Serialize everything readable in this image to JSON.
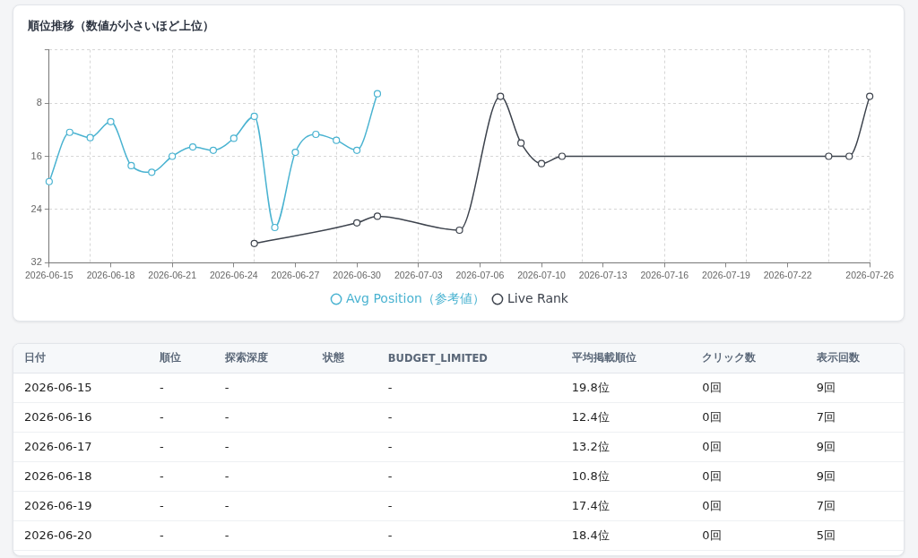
{
  "chart_data": [
    {
      "type": "line",
      "title": "順位推移（数値が小さいほど上位）",
      "categories": [
        "2026-06-15",
        null,
        null,
        "2026-06-18",
        null,
        null,
        "2026-06-21",
        null,
        null,
        "2026-06-24",
        null,
        null,
        "2026-06-27",
        null,
        null,
        "2026-06-30",
        null,
        null,
        "2026-07-03",
        null,
        null,
        "2026-07-06",
        null,
        null,
        "2026-07-10",
        null,
        null,
        "2026-07-13",
        null,
        null,
        "2026-07-16",
        null,
        null,
        "2026-07-19",
        null,
        null,
        "2026-07-22",
        null,
        null,
        null,
        "2026-07-26"
      ],
      "series": [
        {
          "name": "Avg Position（参考値）",
          "color": "#4ab3d1",
          "values": [
            19.8,
            12.4,
            13.2,
            10.8,
            17.4,
            18.4,
            16.0,
            14.6,
            15.1,
            13.3,
            10.0,
            26.7,
            15.4,
            12.7,
            13.6,
            15.1,
            6.6,
            null,
            null,
            null,
            null,
            null,
            null,
            null,
            null,
            null,
            null,
            null,
            null,
            null,
            null,
            null,
            null,
            null,
            null,
            null,
            null,
            null,
            null,
            null,
            null
          ]
        },
        {
          "name": "Live Rank",
          "color": "#3d434d",
          "values": [
            null,
            null,
            null,
            null,
            null,
            null,
            null,
            null,
            null,
            null,
            29.1,
            null,
            null,
            null,
            null,
            26.0,
            25.0,
            null,
            null,
            null,
            27.1,
            null,
            7.0,
            14.0,
            17.1,
            16.0,
            null,
            null,
            null,
            null,
            null,
            null,
            null,
            null,
            null,
            null,
            null,
            null,
            16.0,
            16.0,
            7.0
          ]
        }
      ],
      "ylim": [
        32,
        0
      ],
      "yticks": [
        {
          "value": 0,
          "label": null
        },
        8,
        16,
        24,
        32
      ],
      "grid": true,
      "legend": "bottom",
      "marker": "circle",
      "line_style": "solid"
    },
    {
      "type": "other",
      "categories": [
        "日付",
        "順位",
        "探索深度",
        "状態",
        "BUDGET_LIMITED",
        "平均掲載順位",
        "クリック数",
        "表示回数"
      ],
      "cell_labels": [
        [
          "2026-06-15",
          "-",
          "-",
          null,
          "-",
          "19.8位",
          "0回",
          "9回"
        ],
        [
          "2026-06-16",
          "-",
          "-",
          null,
          "-",
          "12.4位",
          "0回",
          "7回"
        ],
        [
          "2026-06-17",
          "-",
          "-",
          null,
          "-",
          "13.2位",
          "0回",
          "9回"
        ],
        [
          "2026-06-18",
          "-",
          "-",
          null,
          "-",
          "10.8位",
          "0回",
          "9回"
        ],
        [
          "2026-06-19",
          "-",
          "-",
          null,
          "-",
          "17.4位",
          "0回",
          "7回"
        ],
        [
          "2026-06-20",
          "-",
          "-",
          null,
          "-",
          "18.4位",
          "0回",
          "5回"
        ]
      ]
    }
  ]
}
